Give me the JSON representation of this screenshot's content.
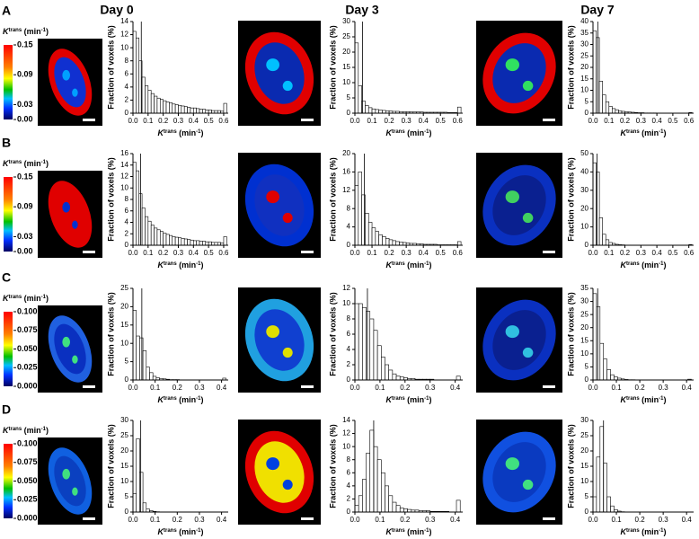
{
  "headers": [
    "Day 0",
    "Day 3",
    "Day 7"
  ],
  "panels": [
    "A",
    "B",
    "C",
    "D"
  ],
  "colorbars": [
    {
      "label": {
        "symbol": "K",
        "sup": "trans",
        "unit": " (min",
        "unit_sup": "-1",
        "close": ")"
      },
      "lim": [
        0,
        0.15
      ],
      "ticks": [
        0.15,
        0.09,
        0.03,
        {
          "value": 0,
          "label": "0.00"
        }
      ]
    },
    {
      "label": {
        "symbol": "K",
        "sup": "trans",
        "unit": " (min",
        "unit_sup": "-1",
        "close": ")"
      },
      "lim": [
        0,
        0.15
      ],
      "ticks": [
        0.15,
        0.09,
        0.03,
        {
          "value": 0,
          "label": "0.00"
        }
      ]
    },
    {
      "label": {
        "symbol": "K",
        "sup": "trans",
        "unit": " (min",
        "unit_sup": "-1",
        "close": ")"
      },
      "lim": [
        0,
        0.1
      ],
      "ticks": [
        {
          "value": 0.1,
          "label": "0.100"
        },
        0.075,
        {
          "value": 0.05,
          "label": "0.050"
        },
        0.025,
        {
          "value": 0,
          "label": "0.000"
        }
      ]
    },
    {
      "label": {
        "symbol": "K",
        "sup": "trans",
        "unit": " (min",
        "unit_sup": "-1",
        "close": ")"
      },
      "lim": [
        0,
        0.1
      ],
      "ticks": [
        {
          "value": 0.1,
          "label": "0.100"
        },
        0.075,
        {
          "value": 0.05,
          "label": "0.050"
        },
        0.025,
        {
          "value": 0,
          "label": "0.000"
        }
      ]
    }
  ],
  "chart_data": [
    {
      "type": "histogram",
      "ylabel": "Fraction of voxels (%)",
      "xlabel": {
        "symbol": "K",
        "sup": "trans",
        "unit": " (min",
        "unit_sup": "-1",
        "close": ")"
      },
      "xlim": [
        0,
        0.63
      ],
      "xticks": [
        {
          "value": 0,
          "label": "0.0"
        },
        0.1,
        0.2,
        0.3,
        0.4,
        0.5,
        0.6
      ],
      "ylim": [
        0,
        14
      ],
      "yticks": [
        0,
        2,
        4,
        6,
        8,
        10,
        12,
        14
      ],
      "marker_x": 0.055,
      "bins": [
        0,
        0.02,
        0.04,
        0.06,
        0.08,
        0.1,
        0.12,
        0.14,
        0.16,
        0.18,
        0.2,
        0.22,
        0.24,
        0.26,
        0.28,
        0.3,
        0.32,
        0.34,
        0.36,
        0.38,
        0.4,
        0.42,
        0.44,
        0.46,
        0.48,
        0.5,
        0.52,
        0.54,
        0.56,
        0.58,
        0.6,
        0.62
      ],
      "values": [
        12.5,
        11.5,
        8,
        5.5,
        4.2,
        3.5,
        3,
        2.6,
        2.3,
        2.1,
        1.9,
        1.7,
        1.6,
        1.4,
        1.3,
        1.2,
        1.1,
        1,
        0.9,
        0.8,
        0.8,
        0.7,
        0.6,
        0.6,
        0.5,
        0.5,
        0.4,
        0.4,
        0.4,
        0.3,
        1.5
      ]
    },
    {
      "type": "histogram",
      "ylabel": "Fraction of voxels (%)",
      "xlabel": {
        "symbol": "K",
        "sup": "trans",
        "unit": " (min",
        "unit_sup": "-1",
        "close": ")"
      },
      "xlim": [
        0,
        0.63
      ],
      "xticks": [
        {
          "value": 0,
          "label": "0.0"
        },
        0.1,
        0.2,
        0.3,
        0.4,
        0.5,
        0.6
      ],
      "ylim": [
        0,
        30
      ],
      "yticks": [
        0,
        5,
        10,
        15,
        20,
        25,
        30
      ],
      "marker_x": 0.045,
      "bins": [
        0,
        0.02,
        0.04,
        0.06,
        0.08,
        0.1,
        0.12,
        0.14,
        0.16,
        0.18,
        0.2,
        0.22,
        0.24,
        0.26,
        0.28,
        0.3,
        0.32,
        0.34,
        0.36,
        0.38,
        0.4,
        0.42,
        0.44,
        0.46,
        0.48,
        0.5,
        0.52,
        0.54,
        0.56,
        0.58,
        0.6,
        0.62
      ],
      "values": [
        23,
        9,
        4,
        2.5,
        1.8,
        1.4,
        1.2,
        1,
        0.9,
        0.8,
        0.7,
        0.6,
        0.6,
        0.5,
        0.5,
        0.5,
        0.4,
        0.4,
        0.4,
        0.4,
        0.3,
        0.3,
        0.3,
        0.3,
        0.3,
        0.3,
        0.3,
        0.2,
        0.2,
        0.2,
        2
      ]
    },
    {
      "type": "histogram",
      "ylabel": "Fraction of voxels (%)",
      "xlabel": {
        "symbol": "K",
        "sup": "trans",
        "unit": " (min",
        "unit_sup": "-1",
        "close": ")"
      },
      "xlim": [
        0,
        0.63
      ],
      "xticks": [
        {
          "value": 0,
          "label": "0.0"
        },
        0.1,
        0.2,
        0.3,
        0.4,
        0.5,
        0.6
      ],
      "ylim": [
        0,
        40
      ],
      "yticks": [
        0,
        5,
        10,
        15,
        20,
        25,
        30,
        35,
        40
      ],
      "marker_x": 0.03,
      "bins": [
        0,
        0.02,
        0.04,
        0.06,
        0.08,
        0.1,
        0.12,
        0.14,
        0.16,
        0.18,
        0.2,
        0.22,
        0.24,
        0.26,
        0.28,
        0.3,
        0.32,
        0.34,
        0.36,
        0.38,
        0.4,
        0.42,
        0.44,
        0.46,
        0.48,
        0.5,
        0.52,
        0.54,
        0.56,
        0.58,
        0.6,
        0.62
      ],
      "values": [
        36,
        33,
        14,
        8,
        5,
        3,
        2,
        1.5,
        1,
        0.8,
        0.6,
        0.5,
        0.4,
        0.3,
        0.2,
        0.2,
        0.1,
        0.1,
        0.1,
        0.1,
        0,
        0,
        0,
        0,
        0,
        0,
        0,
        0,
        0,
        0,
        0.3
      ]
    },
    {
      "type": "histogram",
      "ylabel": "Fraction of voxels (%)",
      "xlabel": {
        "symbol": "K",
        "sup": "trans",
        "unit": " (min",
        "unit_sup": "-1",
        "close": ")"
      },
      "xlim": [
        0,
        0.63
      ],
      "xticks": [
        {
          "value": 0,
          "label": "0.0"
        },
        0.1,
        0.2,
        0.3,
        0.4,
        0.5,
        0.6
      ],
      "ylim": [
        0,
        16
      ],
      "yticks": [
        0,
        2,
        4,
        6,
        8,
        10,
        12,
        14,
        16
      ],
      "marker_x": 0.05,
      "bins": [
        0,
        0.02,
        0.04,
        0.06,
        0.08,
        0.1,
        0.12,
        0.14,
        0.16,
        0.18,
        0.2,
        0.22,
        0.24,
        0.26,
        0.28,
        0.3,
        0.32,
        0.34,
        0.36,
        0.38,
        0.4,
        0.42,
        0.44,
        0.46,
        0.48,
        0.5,
        0.52,
        0.54,
        0.56,
        0.58,
        0.6,
        0.62
      ],
      "values": [
        14.5,
        13,
        9,
        6.5,
        5,
        4.2,
        3.5,
        3,
        2.7,
        2.4,
        2.1,
        1.9,
        1.7,
        1.5,
        1.4,
        1.3,
        1.2,
        1.1,
        1,
        0.9,
        0.8,
        0.8,
        0.7,
        0.7,
        0.6,
        0.6,
        0.5,
        0.5,
        0.5,
        0.4,
        1.5
      ]
    },
    {
      "type": "histogram",
      "ylabel": "Fraction of voxels (%)",
      "xlabel": {
        "symbol": "K",
        "sup": "trans",
        "unit": " (min",
        "unit_sup": "-1",
        "close": ")"
      },
      "xlim": [
        0,
        0.63
      ],
      "xticks": [
        {
          "value": 0,
          "label": "0.0"
        },
        0.1,
        0.2,
        0.3,
        0.4,
        0.5,
        0.6
      ],
      "ylim": [
        0,
        20
      ],
      "yticks": [
        0,
        4,
        8,
        12,
        16,
        20
      ],
      "marker_x": 0.055,
      "bins": [
        0,
        0.02,
        0.04,
        0.06,
        0.08,
        0.1,
        0.12,
        0.14,
        0.16,
        0.18,
        0.2,
        0.22,
        0.24,
        0.26,
        0.28,
        0.3,
        0.32,
        0.34,
        0.36,
        0.38,
        0.4,
        0.42,
        0.44,
        0.46,
        0.48,
        0.5,
        0.52,
        0.54,
        0.56,
        0.58,
        0.6,
        0.62
      ],
      "values": [
        13,
        16,
        11,
        7,
        5,
        3.8,
        3,
        2.3,
        1.9,
        1.5,
        1.2,
        1,
        0.8,
        0.7,
        0.6,
        0.5,
        0.4,
        0.4,
        0.3,
        0.3,
        0.2,
        0.2,
        0.2,
        0.2,
        0.1,
        0.1,
        0.1,
        0.1,
        0.1,
        0.1,
        0.8
      ]
    },
    {
      "type": "histogram",
      "ylabel": "Fraction of voxels (%)",
      "xlabel": {
        "symbol": "K",
        "sup": "trans",
        "unit": " (min",
        "unit_sup": "-1",
        "close": ")"
      },
      "xlim": [
        0,
        0.63
      ],
      "xticks": [
        {
          "value": 0,
          "label": "0.0"
        },
        0.1,
        0.2,
        0.3,
        0.4,
        0.5,
        0.6
      ],
      "ylim": [
        0,
        50
      ],
      "yticks": [
        0,
        10,
        20,
        30,
        40,
        50
      ],
      "marker_x": 0.025,
      "bins": [
        0,
        0.02,
        0.04,
        0.06,
        0.08,
        0.1,
        0.12,
        0.14,
        0.16,
        0.18,
        0.2,
        0.22,
        0.24,
        0.26,
        0.28,
        0.3,
        0.32,
        0.34,
        0.36,
        0.38,
        0.4,
        0.42,
        0.44,
        0.46,
        0.48,
        0.5,
        0.52,
        0.54,
        0.56,
        0.58,
        0.6,
        0.62
      ],
      "values": [
        45,
        40,
        15,
        6,
        3,
        1.5,
        1,
        0.5,
        0.3,
        0.2,
        0.1,
        0.1,
        0,
        0,
        0,
        0,
        0,
        0,
        0,
        0,
        0,
        0,
        0,
        0,
        0,
        0,
        0,
        0,
        0,
        0,
        0.4
      ]
    },
    {
      "type": "histogram",
      "ylabel": "Fraction of voxels (%)",
      "xlabel": {
        "symbol": "K",
        "sup": "trans",
        "unit": " (min",
        "unit_sup": "-1",
        "close": ")"
      },
      "xlim": [
        0,
        0.43
      ],
      "xticks": [
        {
          "value": 0,
          "label": "0.0"
        },
        0.1,
        0.2,
        0.3,
        0.4
      ],
      "ylim": [
        0,
        25
      ],
      "yticks": [
        0,
        5,
        10,
        15,
        20,
        25
      ],
      "marker_x": 0.04,
      "bins": [
        0,
        0.015,
        0.03,
        0.045,
        0.06,
        0.075,
        0.09,
        0.105,
        0.12,
        0.135,
        0.15,
        0.165,
        0.18,
        0.195,
        0.21,
        0.225,
        0.24,
        0.255,
        0.27,
        0.285,
        0.3,
        0.315,
        0.33,
        0.345,
        0.36,
        0.375,
        0.39,
        0.405,
        0.42
      ],
      "values": [
        19,
        12,
        11.5,
        8,
        3.5,
        2,
        1,
        0.6,
        0.4,
        0.3,
        0.2,
        0.1,
        0.1,
        0.1,
        0,
        0,
        0,
        0,
        0,
        0,
        0,
        0,
        0,
        0,
        0,
        0,
        0,
        0.5
      ]
    },
    {
      "type": "histogram",
      "ylabel": "Fraction of voxels (%)",
      "xlabel": {
        "symbol": "K",
        "sup": "trans",
        "unit": " (min",
        "unit_sup": "-1",
        "close": ")"
      },
      "xlim": [
        0,
        0.43
      ],
      "xticks": [
        {
          "value": 0,
          "label": "0.0"
        },
        0.1,
        0.2,
        0.3,
        0.4
      ],
      "ylim": [
        0,
        12
      ],
      "yticks": [
        0,
        2,
        4,
        6,
        8,
        10,
        12
      ],
      "marker_x": 0.05,
      "bins": [
        0,
        0.015,
        0.03,
        0.045,
        0.06,
        0.075,
        0.09,
        0.105,
        0.12,
        0.135,
        0.15,
        0.165,
        0.18,
        0.195,
        0.21,
        0.225,
        0.24,
        0.255,
        0.27,
        0.285,
        0.3,
        0.315,
        0.33,
        0.345,
        0.36,
        0.375,
        0.39,
        0.405,
        0.42
      ],
      "values": [
        10,
        10,
        9.5,
        9,
        8,
        6.5,
        4.5,
        3,
        2,
        1.3,
        0.8,
        0.5,
        0.4,
        0.3,
        0.2,
        0.2,
        0.1,
        0.1,
        0.1,
        0.1,
        0.1,
        0,
        0,
        0,
        0,
        0,
        0,
        0.5
      ]
    },
    {
      "type": "histogram",
      "ylabel": "Fraction of voxels (%)",
      "xlabel": {
        "symbol": "K",
        "sup": "trans",
        "unit": " (min",
        "unit_sup": "-1",
        "close": ")"
      },
      "xlim": [
        0,
        0.43
      ],
      "xticks": [
        {
          "value": 0,
          "label": "0.0"
        },
        0.1,
        0.2,
        0.3,
        0.4
      ],
      "ylim": [
        0,
        35
      ],
      "yticks": [
        0,
        5,
        10,
        15,
        20,
        25,
        30,
        35
      ],
      "marker_x": 0.02,
      "bins": [
        0,
        0.015,
        0.03,
        0.045,
        0.06,
        0.075,
        0.09,
        0.105,
        0.12,
        0.135,
        0.15,
        0.165,
        0.18,
        0.195,
        0.21,
        0.225,
        0.24,
        0.255,
        0.27,
        0.285,
        0.3,
        0.315,
        0.33,
        0.345,
        0.36,
        0.375,
        0.39,
        0.405,
        0.42
      ],
      "values": [
        33,
        28,
        14,
        8,
        4,
        2,
        1.2,
        0.7,
        0.4,
        0.2,
        0.1,
        0.1,
        0,
        0,
        0,
        0,
        0,
        0,
        0,
        0,
        0,
        0,
        0,
        0,
        0,
        0,
        0,
        0.3
      ]
    },
    {
      "type": "histogram",
      "ylabel": "Fraction of voxels (%)",
      "xlabel": {
        "symbol": "K",
        "sup": "trans",
        "unit": " (min",
        "unit_sup": "-1",
        "close": ")"
      },
      "xlim": [
        0,
        0.43
      ],
      "xticks": [
        {
          "value": 0,
          "label": "0.0"
        },
        0.1,
        0.2,
        0.3,
        0.4
      ],
      "ylim": [
        0,
        30
      ],
      "yticks": [
        0,
        5,
        10,
        15,
        20,
        25,
        30
      ],
      "marker_x": 0.035,
      "bins": [
        0,
        0.015,
        0.03,
        0.045,
        0.06,
        0.075,
        0.09,
        0.105,
        0.12,
        0.135,
        0.15,
        0.165,
        0.18,
        0.195,
        0.21,
        0.225,
        0.24,
        0.255,
        0.27,
        0.285,
        0.3,
        0.315,
        0.33,
        0.345,
        0.36,
        0.375,
        0.39,
        0.405,
        0.42
      ],
      "values": [
        6,
        24,
        13,
        3,
        1,
        0.5,
        0.2,
        0.1,
        0,
        0,
        0,
        0,
        0,
        0,
        0,
        0,
        0,
        0,
        0,
        0,
        0,
        0,
        0,
        0,
        0,
        0,
        0,
        0
      ]
    },
    {
      "type": "histogram",
      "ylabel": "Fraction of voxels (%)",
      "xlabel": {
        "symbol": "K",
        "sup": "trans",
        "unit": " (min",
        "unit_sup": "-1",
        "close": ")"
      },
      "xlim": [
        0,
        0.43
      ],
      "xticks": [
        {
          "value": 0,
          "label": "0.0"
        },
        0.1,
        0.2,
        0.3,
        0.4
      ],
      "ylim": [
        0,
        14
      ],
      "yticks": [
        0,
        2,
        4,
        6,
        8,
        10,
        12,
        14
      ],
      "marker_x": 0.075,
      "bins": [
        0,
        0.015,
        0.03,
        0.045,
        0.06,
        0.075,
        0.09,
        0.105,
        0.12,
        0.135,
        0.15,
        0.165,
        0.18,
        0.195,
        0.21,
        0.225,
        0.24,
        0.255,
        0.27,
        0.285,
        0.3,
        0.315,
        0.33,
        0.345,
        0.36,
        0.375,
        0.39,
        0.405,
        0.42
      ],
      "values": [
        1,
        2.5,
        5,
        9,
        12.5,
        10,
        8,
        6,
        4,
        2.5,
        1.5,
        1,
        0.6,
        0.5,
        0.4,
        0.3,
        0.3,
        0.2,
        0.2,
        0.2,
        0.1,
        0.1,
        0.1,
        0.1,
        0.1,
        0,
        0,
        1.8
      ]
    },
    {
      "type": "histogram",
      "ylabel": "Fraction of voxels (%)",
      "xlabel": {
        "symbol": "K",
        "sup": "trans",
        "unit": " (min",
        "unit_sup": "-1",
        "close": ")"
      },
      "xlim": [
        0,
        0.43
      ],
      "xticks": [
        {
          "value": 0,
          "label": "0.0"
        },
        0.1,
        0.2,
        0.3,
        0.4
      ],
      "ylim": [
        0,
        30
      ],
      "yticks": [
        0,
        5,
        10,
        15,
        20,
        25,
        30
      ],
      "marker_x": 0.045,
      "bins": [
        0,
        0.015,
        0.03,
        0.045,
        0.06,
        0.075,
        0.09,
        0.105,
        0.12,
        0.135,
        0.15,
        0.165,
        0.18,
        0.195,
        0.21,
        0.225,
        0.24,
        0.255,
        0.27,
        0.285,
        0.3,
        0.315,
        0.33,
        0.345,
        0.36,
        0.375,
        0.39,
        0.405,
        0.42
      ],
      "values": [
        5,
        18,
        28,
        16,
        5,
        2,
        0.8,
        0.3,
        0.1,
        0,
        0,
        0,
        0,
        0,
        0,
        0,
        0,
        0,
        0,
        0,
        0,
        0,
        0,
        0,
        0,
        0,
        0,
        0
      ]
    }
  ]
}
